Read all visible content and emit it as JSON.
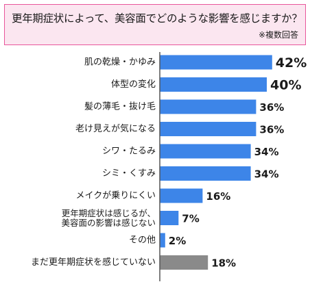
{
  "question": {
    "title": "更年期症状によって、美容面でどのような影響を感じますか？",
    "note": "※複数回答"
  },
  "colors": {
    "bar": "#3d85e8",
    "bar_muted": "#8a8a8a",
    "frame": "#e8559b",
    "frame_fill": "#fbe6f0"
  },
  "chart_data": {
    "type": "bar",
    "orientation": "horizontal",
    "title": "更年期症状によって、美容面でどのような影響を感じますか？",
    "subtitle": "※複数回答",
    "unit": "%",
    "categories": [
      [
        "肌の乾燥・かゆみ"
      ],
      [
        "体型の変化"
      ],
      [
        "髪の薄毛・抜け毛"
      ],
      [
        "老け見えが気になる"
      ],
      [
        "シワ・たるみ"
      ],
      [
        "シミ・くすみ"
      ],
      [
        "メイクが乗りにくい"
      ],
      [
        "更年期症状は感じるが、",
        "美容面の影響は感じない"
      ],
      [
        "その他"
      ],
      [
        "まだ更年期症状を感じていない"
      ]
    ],
    "values": [
      42,
      40,
      36,
      36,
      34,
      34,
      16,
      7,
      2,
      18
    ],
    "value_labels": [
      "42%",
      "40%",
      "36%",
      "36%",
      "34%",
      "34%",
      "16%",
      "7%",
      "2%",
      "18%"
    ],
    "muted_index": 9
  }
}
